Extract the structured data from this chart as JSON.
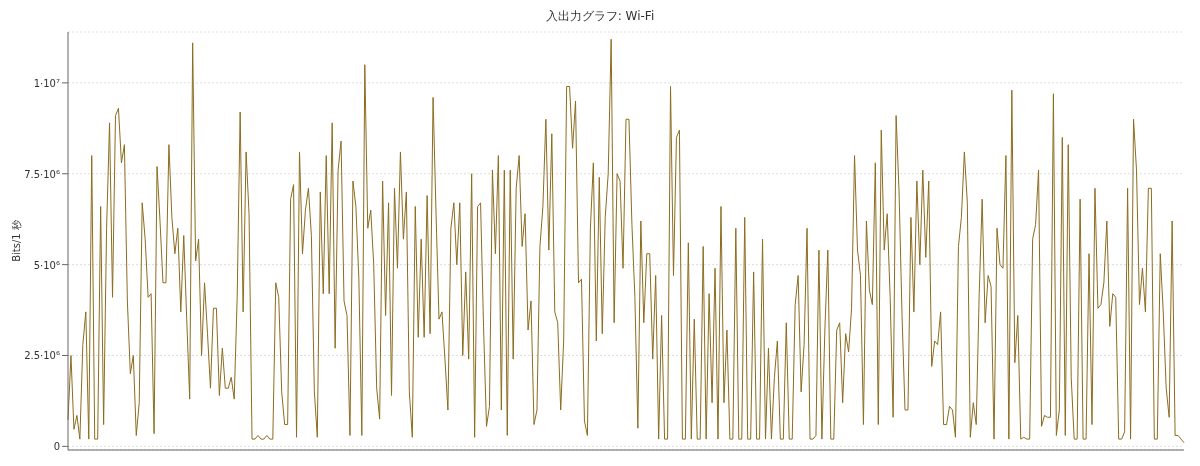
{
  "chart_data": {
    "type": "line",
    "title": "入出力グラフ: Wi-Fi",
    "ylabel": "Bits/1 秒",
    "ylim": [
      -100000,
      11400000
    ],
    "yticks": [
      0,
      {
        "value": 2500000,
        "label": "2.5·10⁶"
      },
      {
        "value": 5000000,
        "label": "5·10⁶"
      },
      {
        "value": 7500000,
        "label": "7.5·10⁶"
      },
      {
        "value": 10000000,
        "label": "1·10⁷"
      }
    ],
    "grid": "y",
    "legend": false,
    "marker": "none",
    "line_style": "solid",
    "series": [
      {
        "color": "#8c6d1f",
        "values": [
          730000,
          2500000,
          470000,
          850000,
          200000,
          2800000,
          3700000,
          200000,
          8000000,
          200000,
          200000,
          6600000,
          600000,
          6000000,
          8900000,
          4100000,
          9100000,
          9300000,
          7800000,
          8300000,
          4000000,
          2000000,
          2500000,
          300000,
          1200000,
          6700000,
          5700000,
          4100000,
          4200000,
          350000,
          7700000,
          6200000,
          4500000,
          4500000,
          8300000,
          6300000,
          5300000,
          6000000,
          3700000,
          5800000,
          3500000,
          1300000,
          11100000,
          5100000,
          5700000,
          2500000,
          4500000,
          3100000,
          1600000,
          3800000,
          3800000,
          1400000,
          2700000,
          1600000,
          1600000,
          1900000,
          1300000,
          4100000,
          9200000,
          3700000,
          8100000,
          6400000,
          200000,
          200000,
          300000,
          200000,
          200000,
          300000,
          200000,
          200000,
          4500000,
          4100000,
          1500000,
          600000,
          600000,
          6800000,
          7200000,
          250000,
          8100000,
          5300000,
          6500000,
          7100000,
          5800000,
          1500000,
          250000,
          7000000,
          4200000,
          8000000,
          4200000,
          8900000,
          2700000,
          7600000,
          8400000,
          4000000,
          3600000,
          300000,
          7300000,
          6600000,
          4600000,
          300000,
          10500000,
          6000000,
          6500000,
          5000000,
          1600000,
          750000,
          7300000,
          3600000,
          6700000,
          1400000,
          7100000,
          4900000,
          8100000,
          5700000,
          7000000,
          1500000,
          250000,
          6600000,
          3000000,
          5700000,
          3000000,
          6900000,
          3100000,
          9600000,
          6400000,
          3500000,
          3700000,
          2400000,
          1000000,
          6000000,
          6700000,
          5000000,
          6700000,
          2500000,
          4800000,
          2400000,
          7500000,
          250000,
          6600000,
          6700000,
          3300000,
          550000,
          1100000,
          7600000,
          5300000,
          8000000,
          1000000,
          7600000,
          300000,
          7600000,
          2400000,
          7100000,
          8000000,
          5500000,
          6400000,
          3200000,
          4000000,
          600000,
          1000000,
          5500000,
          6600000,
          9000000,
          5400000,
          8600000,
          3700000,
          3400000,
          1000000,
          2900000,
          9900000,
          9900000,
          8200000,
          9500000,
          4500000,
          4600000,
          700000,
          300000,
          6000000,
          7800000,
          2900000,
          7400000,
          3100000,
          6300000,
          7500000,
          11200000,
          3400000,
          7500000,
          7300000,
          4900000,
          9000000,
          9000000,
          6100000,
          4100000,
          500000,
          6200000,
          3400000,
          5300000,
          5300000,
          2400000,
          4700000,
          200000,
          3600000,
          200000,
          200000,
          9900000,
          4700000,
          8500000,
          8700000,
          200000,
          200000,
          5600000,
          200000,
          3500000,
          200000,
          200000,
          5500000,
          200000,
          4200000,
          1200000,
          4900000,
          200000,
          6600000,
          1200000,
          3200000,
          200000,
          200000,
          6000000,
          200000,
          200000,
          6300000,
          200000,
          200000,
          4800000,
          200000,
          200000,
          5700000,
          200000,
          2700000,
          200000,
          1900000,
          2900000,
          200000,
          200000,
          3400000,
          200000,
          200000,
          3900000,
          4700000,
          1500000,
          2800000,
          6000000,
          200000,
          200000,
          300000,
          5400000,
          200000,
          3200000,
          5400000,
          200000,
          200000,
          3200000,
          3400000,
          1200000,
          3100000,
          2600000,
          3800000,
          8000000,
          5400000,
          4700000,
          600000,
          6200000,
          4300000,
          3900000,
          7800000,
          600000,
          8700000,
          5400000,
          6400000,
          4100000,
          800000,
          9100000,
          7000000,
          3600000,
          1000000,
          1000000,
          6300000,
          3700000,
          7300000,
          5000000,
          7600000,
          5200000,
          7300000,
          2200000,
          2900000,
          2800000,
          3700000,
          600000,
          600000,
          1100000,
          1000000,
          250000,
          5500000,
          6300000,
          8100000,
          6700000,
          250000,
          1200000,
          600000,
          4200000,
          6800000,
          3400000,
          4700000,
          4400000,
          200000,
          6000000,
          5000000,
          4900000,
          8000000,
          200000,
          9800000,
          2300000,
          3600000,
          200000,
          250000,
          200000,
          200000,
          5700000,
          6100000,
          7600000,
          550000,
          850000,
          800000,
          800000,
          9700000,
          300000,
          1000000,
          8500000,
          300000,
          8300000,
          1900000,
          200000,
          200000,
          6800000,
          200000,
          200000,
          5300000,
          600000,
          7100000,
          3800000,
          3900000,
          4500000,
          6200000,
          3300000,
          4200000,
          4100000,
          200000,
          200000,
          400000,
          7100000,
          200000,
          9000000,
          7600000,
          3900000,
          4900000,
          3700000,
          7100000,
          7100000,
          200000,
          200000,
          5300000,
          3700000,
          1600000,
          800000,
          6200000,
          300000,
          300000,
          200000,
          100000
        ]
      }
    ]
  }
}
